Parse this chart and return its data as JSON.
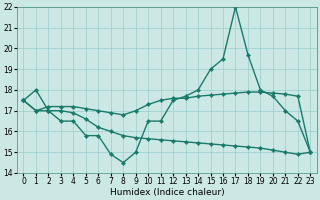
{
  "xlabel": "Humidex (Indice chaleur)",
  "background_color": "#cce8e4",
  "grid_color": "#99cccc",
  "line_color": "#1a7a6a",
  "xmin": -0.5,
  "xmax": 23.5,
  "ymin": 14,
  "ymax": 22,
  "yticks": [
    14,
    15,
    16,
    17,
    18,
    19,
    20,
    21,
    22
  ],
  "xticks": [
    0,
    1,
    2,
    3,
    4,
    5,
    6,
    7,
    8,
    9,
    10,
    11,
    12,
    13,
    14,
    15,
    16,
    17,
    18,
    19,
    20,
    21,
    22,
    23
  ],
  "line1_y": [
    17.5,
    18.0,
    17.0,
    16.5,
    16.5,
    15.8,
    15.8,
    14.9,
    14.5,
    15.0,
    16.5,
    16.5,
    17.5,
    17.7,
    18.0,
    19.0,
    19.5,
    22.0,
    19.7,
    18.0,
    17.7,
    17.0,
    16.5,
    15.0
  ],
  "line2_y": [
    17.5,
    17.0,
    17.2,
    17.2,
    17.2,
    17.1,
    17.0,
    16.9,
    16.8,
    17.0,
    17.3,
    17.5,
    17.6,
    17.6,
    17.7,
    17.75,
    17.8,
    17.85,
    17.9,
    17.9,
    17.85,
    17.8,
    17.7,
    15.0
  ],
  "line3_y": [
    17.5,
    17.0,
    17.0,
    17.0,
    16.9,
    16.6,
    16.2,
    16.0,
    15.8,
    15.7,
    15.65,
    15.6,
    15.55,
    15.5,
    15.45,
    15.4,
    15.35,
    15.3,
    15.25,
    15.2,
    15.1,
    15.0,
    14.9,
    15.0
  ],
  "tick_fontsize": 5.5,
  "xlabel_fontsize": 6.5,
  "linewidth": 1.0,
  "markersize": 2.2
}
